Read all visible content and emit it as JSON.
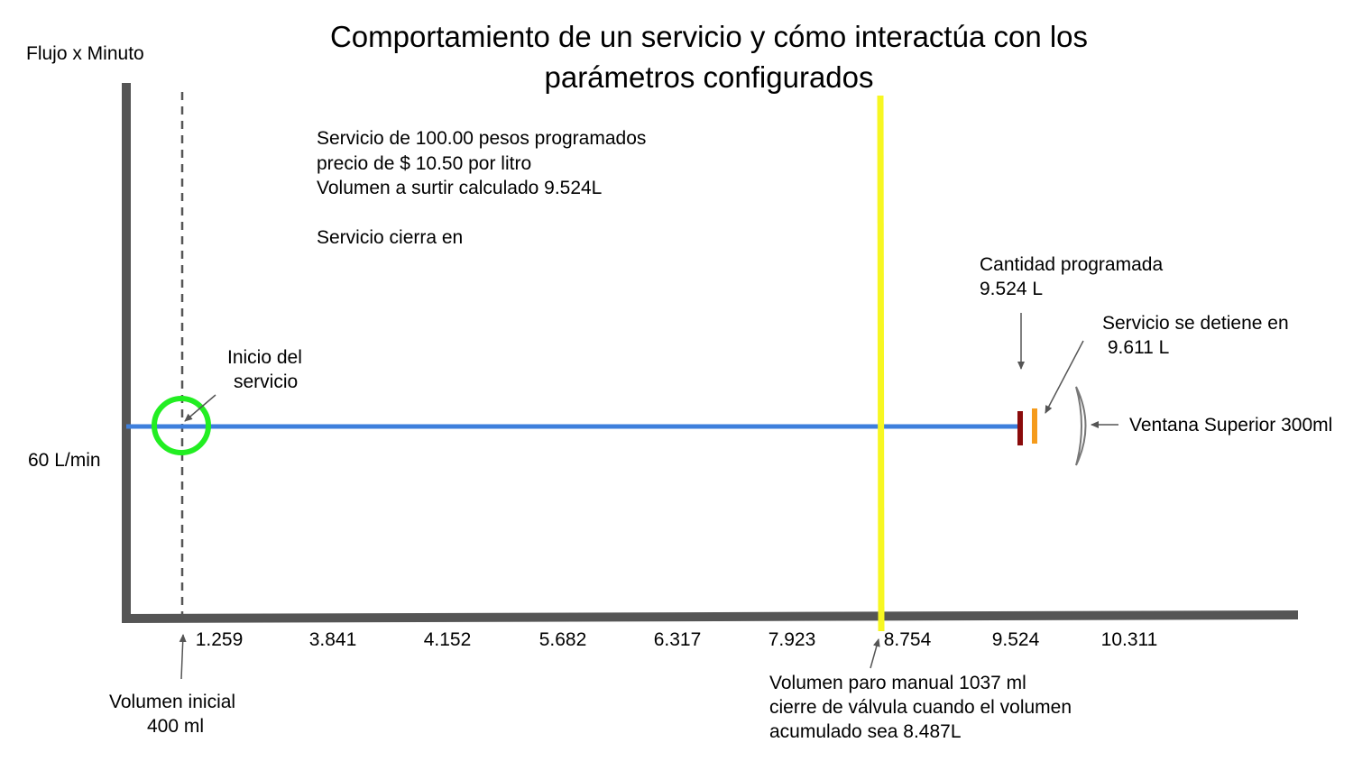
{
  "title": {
    "line1": "Comportamiento de un servicio y cómo interactúa con los",
    "line2": "parámetros configurados"
  },
  "y_axis": {
    "label": "Flujo x Minuto",
    "flow_label": "60 L/min"
  },
  "x_axis": {
    "ticks": [
      "1.259",
      "3.841",
      "4.152",
      "5.682",
      "6.317",
      "7.923",
      "8.754",
      "9.524",
      "10.311"
    ]
  },
  "info": {
    "line1": "Servicio de 100.00 pesos programados",
    "line2": "precio de $ 10.50 por litro",
    "line3": "Volumen a surtir calculado 9.524L",
    "line4": "Servicio cierra en"
  },
  "annotations": {
    "start": {
      "line1": "Inicio del",
      "line2": "servicio"
    },
    "programmed": {
      "line1": "Cantidad programada",
      "line2": "9.524 L"
    },
    "stops": {
      "line1": "Servicio se detiene en",
      "line2": " 9.611 L"
    },
    "window": {
      "text": "Ventana Superior 300ml"
    },
    "initial_volume": {
      "line1": "Volumen inicial",
      "line2": "400 ml"
    },
    "manual_stop": {
      "line1": "Volumen paro manual 1037 ml",
      "line2": "cierre de válvula cuando el volumen",
      "line3": "acumulado sea 8.487L"
    }
  },
  "colors": {
    "axis": "#555555",
    "flow_line": "#3e7fdc",
    "start_circle": "#22ee22",
    "manual_stop_line": "#f7f722",
    "programmed_marker": "#8a0b0b",
    "stop_marker": "#f59b1c",
    "arrow": "#555555"
  }
}
